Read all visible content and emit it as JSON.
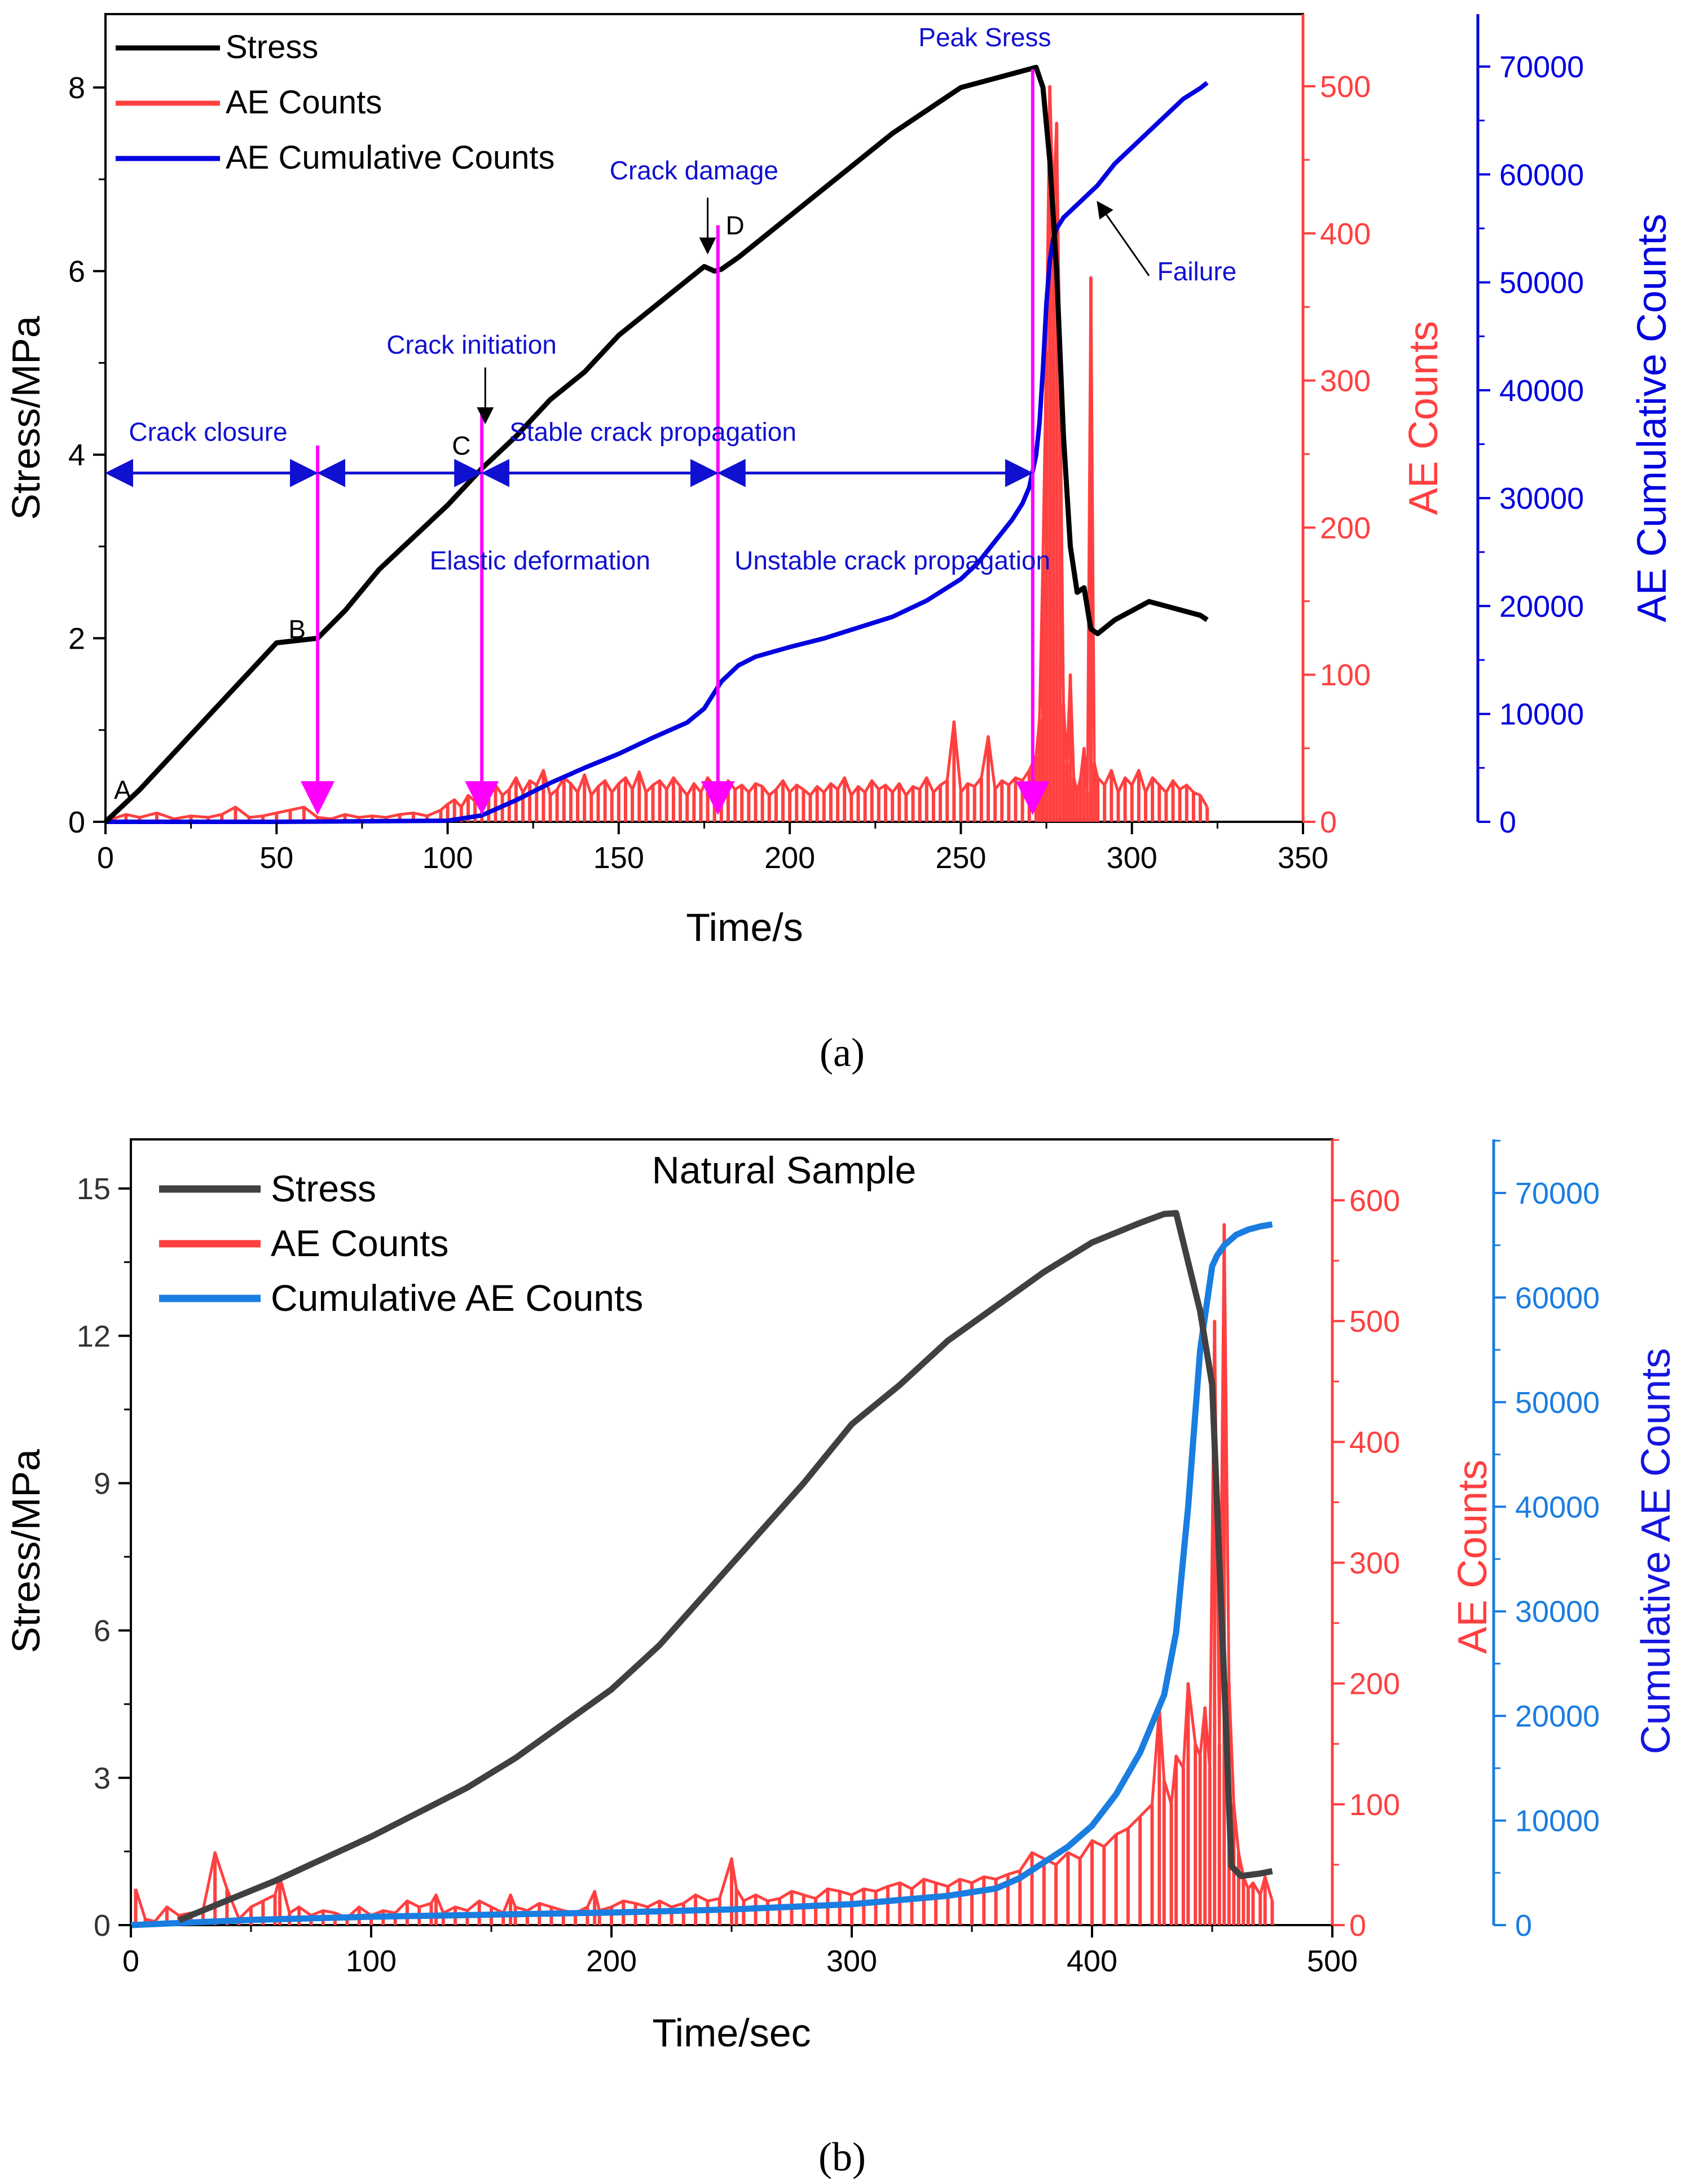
{
  "chart_data": [
    {
      "type": "line",
      "panel_label": "(a)",
      "xlabel": "Time/s",
      "ylabel_left": "Stress/MPa",
      "ylabel_right1": "AE Counts",
      "ylabel_right2": "AE Cumulative Counts",
      "xlim": [
        0,
        350
      ],
      "ylim_left": [
        0,
        8.8
      ],
      "ylim_right1": [
        0,
        500
      ],
      "ylim_right2": [
        0,
        70000
      ],
      "x_ticks": [
        "0",
        "50",
        "100",
        "150",
        "200",
        "250",
        "300",
        "350"
      ],
      "y_left_ticks": [
        "0",
        "2",
        "4",
        "6",
        "8"
      ],
      "y_right1_ticks": [
        "0",
        "100",
        "200",
        "300",
        "400",
        "500"
      ],
      "y_right2_ticks": [
        "0",
        "10000",
        "20000",
        "30000",
        "40000",
        "50000",
        "60000",
        "70000"
      ],
      "legend_position": "top-left",
      "colors": {
        "stress": "#000000",
        "ae": "#ff4040",
        "cum": "#0000e0",
        "marker": "#ff00ff",
        "annotation": "#1010d0",
        "right1_axis": "#ff4040",
        "right2_axis": "#0000e0"
      },
      "series": [
        {
          "name": "Stress",
          "axis": "left",
          "x": [
            0,
            10,
            20,
            30,
            40,
            50,
            62,
            70,
            80,
            90,
            100,
            110,
            120,
            130,
            140,
            150,
            160,
            170,
            175,
            178,
            180,
            185,
            190,
            200,
            210,
            220,
            230,
            240,
            250,
            260,
            265,
            270,
            272,
            274,
            275,
            276,
            278,
            280,
            282,
            284,
            286,
            288,
            290,
            295,
            300,
            305,
            310,
            315,
            320,
            322
          ],
          "y": [
            0,
            0.35,
            0.75,
            1.15,
            1.55,
            1.95,
            2.0,
            2.3,
            2.75,
            3.1,
            3.45,
            3.85,
            4.2,
            4.6,
            4.9,
            5.3,
            5.6,
            5.9,
            6.05,
            6.0,
            6.02,
            6.15,
            6.3,
            6.6,
            6.9,
            7.2,
            7.5,
            7.75,
            8.0,
            8.1,
            8.15,
            8.2,
            8.22,
            8.0,
            7.6,
            7.2,
            6.0,
            4.2,
            3.0,
            2.5,
            2.55,
            2.1,
            2.05,
            2.2,
            2.3,
            2.4,
            2.35,
            2.3,
            2.25,
            2.2
          ]
        },
        {
          "name": "AE Counts",
          "axis": "right1",
          "x": [
            2,
            6,
            10,
            15,
            20,
            25,
            30,
            34,
            38,
            42,
            46,
            50,
            54,
            58,
            62,
            66,
            70,
            74,
            78,
            82,
            86,
            90,
            94,
            98,
            100,
            102,
            104,
            106,
            108,
            110,
            112,
            114,
            116,
            118,
            120,
            122,
            124,
            126,
            128,
            130,
            132,
            134,
            136,
            138,
            140,
            142,
            144,
            146,
            148,
            150,
            152,
            154,
            156,
            158,
            160,
            162,
            164,
            166,
            168,
            170,
            172,
            174,
            176,
            178,
            180,
            182,
            184,
            186,
            188,
            190,
            192,
            194,
            196,
            198,
            200,
            202,
            204,
            206,
            208,
            210,
            212,
            214,
            216,
            218,
            220,
            222,
            224,
            226,
            228,
            230,
            232,
            234,
            236,
            238,
            240,
            242,
            244,
            246,
            248,
            250,
            252,
            254,
            256,
            258,
            260,
            262,
            264,
            266,
            268,
            270,
            272,
            273,
            274,
            275,
            276,
            277,
            278,
            279,
            280,
            281,
            282,
            283,
            284,
            285,
            286,
            287,
            288,
            289,
            290,
            292,
            294,
            296,
            298,
            300,
            302,
            304,
            306,
            308,
            310,
            312,
            314,
            316,
            318,
            320,
            322
          ],
          "y": [
            2,
            5,
            3,
            6,
            2,
            4,
            3,
            5,
            10,
            3,
            4,
            6,
            8,
            10,
            3,
            2,
            5,
            3,
            4,
            3,
            5,
            6,
            4,
            8,
            12,
            15,
            10,
            18,
            14,
            20,
            16,
            25,
            18,
            22,
            30,
            20,
            28,
            25,
            35,
            18,
            22,
            30,
            26,
            20,
            32,
            18,
            24,
            28,
            20,
            26,
            30,
            22,
            34,
            20,
            25,
            28,
            22,
            30,
            24,
            18,
            26,
            20,
            30,
            24,
            18,
            28,
            22,
            25,
            20,
            26,
            24,
            18,
            22,
            28,
            20,
            25,
            22,
            18,
            24,
            20,
            26,
            22,
            30,
            18,
            24,
            20,
            28,
            22,
            25,
            20,
            26,
            18,
            24,
            22,
            30,
            20,
            25,
            28,
            68,
            20,
            26,
            24,
            30,
            58,
            22,
            28,
            25,
            30,
            28,
            35,
            45,
            70,
            180,
            320,
            500,
            420,
            475,
            300,
            80,
            40,
            100,
            30,
            20,
            30,
            50,
            20,
            370,
            40,
            30,
            25,
            35,
            20,
            30,
            25,
            35,
            20,
            30,
            25,
            20,
            28,
            22,
            25,
            20,
            18,
            10
          ]
        },
        {
          "name": "AE Cumulative Counts",
          "axis": "right2",
          "x": [
            0,
            50,
            100,
            110,
            120,
            130,
            140,
            150,
            160,
            170,
            175,
            178,
            180,
            185,
            190,
            200,
            210,
            220,
            230,
            240,
            250,
            255,
            260,
            265,
            268,
            270,
            272,
            273,
            274,
            275,
            276,
            277,
            278,
            280,
            285,
            290,
            295,
            300,
            305,
            310,
            315,
            320,
            322
          ],
          "y": [
            0,
            0,
            100,
            600,
            2000,
            3600,
            5000,
            6300,
            7800,
            9200,
            10500,
            12000,
            13000,
            14500,
            15300,
            16200,
            17000,
            18000,
            19000,
            20500,
            22500,
            24000,
            26000,
            28000,
            29500,
            31000,
            34000,
            37000,
            42000,
            48000,
            52000,
            54000,
            55000,
            56000,
            57500,
            59000,
            61000,
            62500,
            64000,
            65500,
            67000,
            68000,
            68500
          ]
        }
      ],
      "vertical_markers_x": [
        62,
        110,
        179,
        271
      ],
      "phase_arrows_y": 3.8,
      "point_labels": [
        {
          "text": "A",
          "x": 5,
          "y": 0.25
        },
        {
          "text": "B",
          "x": 56,
          "y": 2.0
        },
        {
          "text": "C",
          "x": 104,
          "y": 4.0
        },
        {
          "text": "D",
          "x": 184,
          "y": 6.4
        }
      ],
      "annotations": [
        {
          "text": "Crack closure",
          "x": 30,
          "y": 4.15
        },
        {
          "text": "Crack initiation",
          "x": 107,
          "y": 5.1
        },
        {
          "text": "Stable crack propagation",
          "x": 160,
          "y": 4.15
        },
        {
          "text": "Elastic deformation",
          "x": 127,
          "y": 2.75
        },
        {
          "text": "Unstable crack propagation",
          "x": 230,
          "y": 2.75
        },
        {
          "text": "Crack damage",
          "x": 172,
          "y": 7.0
        },
        {
          "text": "Peak Sress",
          "x": 257,
          "y": 8.45
        },
        {
          "text": "Failure",
          "x": 319,
          "y": 5.9
        }
      ]
    },
    {
      "type": "line",
      "panel_label": "(b)",
      "title": "Natural Sample",
      "xlabel": "Time/sec",
      "ylabel_left": "Stress/MPa",
      "ylabel_right1": "AE Counts",
      "ylabel_right2": "Cumulative AE Counts",
      "xlim": [
        0,
        500
      ],
      "ylim_left": [
        0,
        16
      ],
      "ylim_right1": [
        0,
        650
      ],
      "ylim_right2": [
        0,
        75000
      ],
      "x_ticks": [
        "0",
        "100",
        "200",
        "300",
        "400",
        "500"
      ],
      "y_left_ticks": [
        "0",
        "3",
        "6",
        "9",
        "12",
        "15"
      ],
      "y_right1_ticks": [
        "0",
        "100",
        "200",
        "300",
        "400",
        "500",
        "600"
      ],
      "y_right2_ticks": [
        "0",
        "10000",
        "20000",
        "30000",
        "40000",
        "50000",
        "60000",
        "70000"
      ],
      "legend_position": "top-left",
      "colors": {
        "stress": "#404040",
        "ae": "#ff4040",
        "cum": "#1a7de0",
        "right1_axis": "#ff4040",
        "right2_axis": "#1a7de0",
        "right2_label": "#1515e0"
      },
      "series": [
        {
          "name": "Stress",
          "axis": "left",
          "x": [
            20,
            40,
            60,
            80,
            100,
            120,
            140,
            160,
            180,
            200,
            220,
            240,
            260,
            280,
            300,
            320,
            340,
            360,
            380,
            400,
            420,
            430,
            435,
            440,
            445,
            450,
            455,
            458,
            462,
            470,
            475
          ],
          "y": [
            0.1,
            0.5,
            0.9,
            1.35,
            1.8,
            2.3,
            2.8,
            3.4,
            4.1,
            4.8,
            5.7,
            6.8,
            7.9,
            9.0,
            10.2,
            11.0,
            11.9,
            12.6,
            13.3,
            13.9,
            14.3,
            14.48,
            14.5,
            13.5,
            12.5,
            11.0,
            5.0,
            1.2,
            1.0,
            1.05,
            1.1
          ]
        },
        {
          "name": "AE Counts",
          "axis": "right1",
          "x": [
            2,
            6,
            10,
            15,
            20,
            25,
            30,
            35,
            40,
            45,
            50,
            55,
            60,
            62,
            66,
            70,
            75,
            80,
            85,
            90,
            95,
            100,
            105,
            110,
            115,
            120,
            125,
            127,
            130,
            135,
            140,
            145,
            150,
            155,
            158,
            160,
            165,
            170,
            175,
            180,
            185,
            190,
            193,
            195,
            200,
            205,
            210,
            215,
            220,
            225,
            230,
            235,
            240,
            245,
            250,
            252,
            255,
            260,
            265,
            270,
            275,
            280,
            285,
            290,
            295,
            300,
            305,
            310,
            315,
            320,
            325,
            330,
            335,
            340,
            345,
            350,
            355,
            360,
            365,
            370,
            375,
            380,
            385,
            390,
            395,
            400,
            405,
            410,
            415,
            420,
            425,
            428,
            430,
            433,
            435,
            438,
            440,
            443,
            445,
            447,
            449,
            451,
            453,
            455,
            457,
            459,
            461,
            463,
            465,
            467,
            470,
            472,
            475
          ],
          "y": [
            30,
            5,
            3,
            15,
            8,
            10,
            12,
            60,
            30,
            5,
            15,
            20,
            25,
            40,
            10,
            15,
            8,
            12,
            10,
            6,
            15,
            8,
            12,
            10,
            20,
            15,
            18,
            25,
            10,
            15,
            12,
            20,
            15,
            10,
            25,
            15,
            12,
            18,
            15,
            12,
            10,
            15,
            28,
            12,
            15,
            20,
            18,
            15,
            20,
            15,
            18,
            25,
            20,
            22,
            55,
            30,
            20,
            25,
            20,
            22,
            28,
            25,
            22,
            30,
            28,
            25,
            30,
            28,
            32,
            35,
            30,
            38,
            35,
            32,
            38,
            35,
            40,
            38,
            42,
            45,
            60,
            55,
            50,
            60,
            55,
            70,
            65,
            75,
            80,
            90,
            100,
            180,
            120,
            100,
            140,
            130,
            200,
            150,
            140,
            180,
            130,
            500,
            150,
            580,
            200,
            100,
            60,
            40,
            30,
            35,
            25,
            40,
            20
          ]
        },
        {
          "name": "Cumulative AE Counts",
          "axis": "right2",
          "x": [
            0,
            50,
            100,
            150,
            200,
            250,
            300,
            340,
            360,
            370,
            380,
            390,
            400,
            410,
            420,
            430,
            435,
            440,
            445,
            450,
            452,
            455,
            460,
            465,
            470,
            475
          ],
          "y": [
            0,
            500,
            800,
            1000,
            1200,
            1500,
            2000,
            2800,
            3500,
            4500,
            6000,
            7500,
            9500,
            12500,
            16500,
            22000,
            28000,
            40000,
            55000,
            63000,
            64000,
            65000,
            66000,
            66500,
            66800,
            67000
          ]
        }
      ]
    }
  ]
}
